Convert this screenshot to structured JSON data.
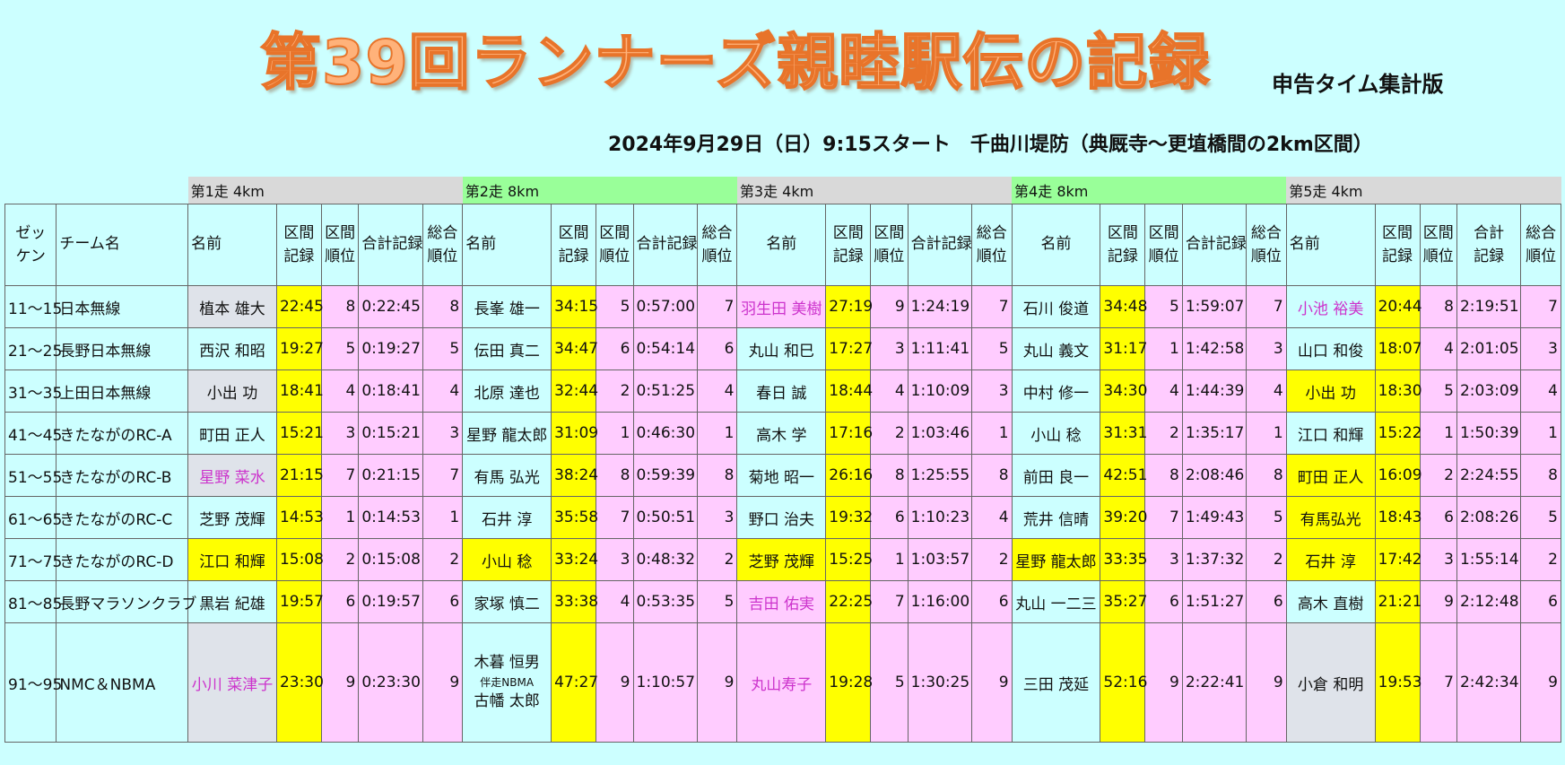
{
  "header": {
    "title": "第39回ランナーズ親睦駅伝の記録",
    "edition": "申告タイム集計版",
    "event_line": "2024年9月29日（日）9:15スタート　千曲川堤防（典厩寺～更埴橋間の2km区間）"
  },
  "table": {
    "legs": [
      "第1走 4km",
      "第2走 8km",
      "第3走 4km",
      "第4走 8km",
      "第5走 4km"
    ],
    "headers": {
      "bib_line1": "ゼッ",
      "bib_line2": "ケン",
      "team": "チーム名",
      "name": "名前",
      "split_line1": "区間",
      "split_line2": "記録",
      "rank_line1": "区間",
      "rank_line2": "順位",
      "total": "合計記録",
      "total_line1": "合計",
      "total_line2": "記録",
      "overall_line1": "総合",
      "overall_line2": "順位"
    },
    "rows": [
      {
        "bib": "11～15",
        "team": "日本無線",
        "legs": [
          {
            "name": "植本 雄大",
            "split": "22:45",
            "rank": "8",
            "total": "0:22:45",
            "overall": "8"
          },
          {
            "name": "長峯 雄一",
            "split": "34:15",
            "rank": "5",
            "total": "0:57:00",
            "overall": "7"
          },
          {
            "name": "羽生田 美樹",
            "split": "27:19",
            "rank": "9",
            "total": "1:24:19",
            "overall": "7"
          },
          {
            "name": "石川 俊道",
            "split": "34:48",
            "rank": "5",
            "total": "1:59:07",
            "overall": "7"
          },
          {
            "name": "小池 裕美",
            "split": "20:44",
            "rank": "8",
            "total": "2:19:51",
            "overall": "7"
          }
        ]
      },
      {
        "bib": "21～25",
        "team": "長野日本無線",
        "legs": [
          {
            "name": "西沢 和昭",
            "split": "19:27",
            "rank": "5",
            "total": "0:19:27",
            "overall": "5"
          },
          {
            "name": "伝田 真二",
            "split": "34:47",
            "rank": "6",
            "total": "0:54:14",
            "overall": "6"
          },
          {
            "name": "丸山 和巳",
            "split": "17:27",
            "rank": "3",
            "total": "1:11:41",
            "overall": "5"
          },
          {
            "name": "丸山 義文",
            "split": "31:17",
            "rank": "1",
            "total": "1:42:58",
            "overall": "3"
          },
          {
            "name": "山口 和俊",
            "split": "18:07",
            "rank": "4",
            "total": "2:01:05",
            "overall": "3"
          }
        ]
      },
      {
        "bib": "31～35",
        "team": "上田日本無線",
        "legs": [
          {
            "name": "小出 功",
            "split": "18:41",
            "rank": "4",
            "total": "0:18:41",
            "overall": "4"
          },
          {
            "name": "北原 達也",
            "split": "32:44",
            "rank": "2",
            "total": "0:51:25",
            "overall": "4"
          },
          {
            "name": "春日 誠",
            "split": "18:44",
            "rank": "4",
            "total": "1:10:09",
            "overall": "3"
          },
          {
            "name": "中村 修一",
            "split": "34:30",
            "rank": "4",
            "total": "1:44:39",
            "overall": "4"
          },
          {
            "name": "小出 功",
            "split": "18:30",
            "rank": "5",
            "total": "2:03:09",
            "overall": "4"
          }
        ]
      },
      {
        "bib": "41～45",
        "team": "きたながのRC-A",
        "legs": [
          {
            "name": "町田 正人",
            "split": "15:21",
            "rank": "3",
            "total": "0:15:21",
            "overall": "3"
          },
          {
            "name": "星野 龍太郎",
            "split": "31:09",
            "rank": "1",
            "total": "0:46:30",
            "overall": "1"
          },
          {
            "name": "高木 学",
            "split": "17:16",
            "rank": "2",
            "total": "1:03:46",
            "overall": "1"
          },
          {
            "name": "小山 稔",
            "split": "31:31",
            "rank": "2",
            "total": "1:35:17",
            "overall": "1"
          },
          {
            "name": "江口 和輝",
            "split": "15:22",
            "rank": "1",
            "total": "1:50:39",
            "overall": "1"
          }
        ]
      },
      {
        "bib": "51～55",
        "team": "きたながのRC-B",
        "legs": [
          {
            "name": "星野 菜水",
            "split": "21:15",
            "rank": "7",
            "total": "0:21:15",
            "overall": "7"
          },
          {
            "name": "有馬 弘光",
            "split": "38:24",
            "rank": "8",
            "total": "0:59:39",
            "overall": "8"
          },
          {
            "name": "菊地 昭一",
            "split": "26:16",
            "rank": "8",
            "total": "1:25:55",
            "overall": "8"
          },
          {
            "name": "前田 良一",
            "split": "42:51",
            "rank": "8",
            "total": "2:08:46",
            "overall": "8"
          },
          {
            "name": "町田 正人",
            "split": "16:09",
            "rank": "2",
            "total": "2:24:55",
            "overall": "8"
          }
        ]
      },
      {
        "bib": "61～65",
        "team": "きたながのRC-C",
        "legs": [
          {
            "name": "芝野 茂輝",
            "split": "14:53",
            "rank": "1",
            "total": "0:14:53",
            "overall": "1"
          },
          {
            "name": "石井 淳",
            "split": "35:58",
            "rank": "7",
            "total": "0:50:51",
            "overall": "3"
          },
          {
            "name": "野口 治夫",
            "split": "19:32",
            "rank": "6",
            "total": "1:10:23",
            "overall": "4"
          },
          {
            "name": "荒井 信晴",
            "split": "39:20",
            "rank": "7",
            "total": "1:49:43",
            "overall": "5"
          },
          {
            "name": "有馬弘光",
            "split": "18:43",
            "rank": "6",
            "total": "2:08:26",
            "overall": "5"
          }
        ]
      },
      {
        "bib": "71～75",
        "team": "きたながのRC-D",
        "legs": [
          {
            "name": "江口 和輝",
            "split": "15:08",
            "rank": "2",
            "total": "0:15:08",
            "overall": "2"
          },
          {
            "name": "小山 稔",
            "split": "33:24",
            "rank": "3",
            "total": "0:48:32",
            "overall": "2"
          },
          {
            "name": "芝野 茂輝",
            "split": "15:25",
            "rank": "1",
            "total": "1:03:57",
            "overall": "2"
          },
          {
            "name": "星野 龍太郎",
            "split": "33:35",
            "rank": "3",
            "total": "1:37:32",
            "overall": "2"
          },
          {
            "name": "石井 淳",
            "split": "17:42",
            "rank": "3",
            "total": "1:55:14",
            "overall": "2"
          }
        ]
      },
      {
        "bib": "81～85",
        "team": "長野マラソンクラブ",
        "legs": [
          {
            "name": "黒岩 紀雄",
            "split": "19:57",
            "rank": "6",
            "total": "0:19:57",
            "overall": "6"
          },
          {
            "name": "家塚 慎二",
            "split": "33:38",
            "rank": "4",
            "total": "0:53:35",
            "overall": "5"
          },
          {
            "name": "吉田 佑実",
            "split": "22:25",
            "rank": "7",
            "total": "1:16:00",
            "overall": "6"
          },
          {
            "name": "丸山 一二三",
            "split": "35:27",
            "rank": "6",
            "total": "1:51:27",
            "overall": "6"
          },
          {
            "name": "高木 直樹",
            "split": "21:21",
            "rank": "9",
            "total": "2:12:48",
            "overall": "6"
          }
        ]
      },
      {
        "bib": "91～95",
        "team": "NMC＆NBMA",
        "legs": [
          {
            "name": "小川 菜津子",
            "split": "23:30",
            "rank": "9",
            "total": "0:23:30",
            "overall": "9"
          },
          {
            "name": "木暮 恒男",
            "name_note": "伴走NBMA",
            "name_2": "古幡 太郎",
            "split": "47:27",
            "rank": "9",
            "total": "1:10:57",
            "overall": "9"
          },
          {
            "name": "丸山寿子",
            "split": "19:28",
            "rank": "5",
            "total": "1:30:25",
            "overall": "9"
          },
          {
            "name": "三田 茂延",
            "split": "52:16",
            "rank": "9",
            "total": "2:22:41",
            "overall": "9"
          },
          {
            "name": "小倉 和明",
            "split": "19:53",
            "rank": "7",
            "total": "2:42:34",
            "overall": "9"
          }
        ]
      }
    ]
  }
}
